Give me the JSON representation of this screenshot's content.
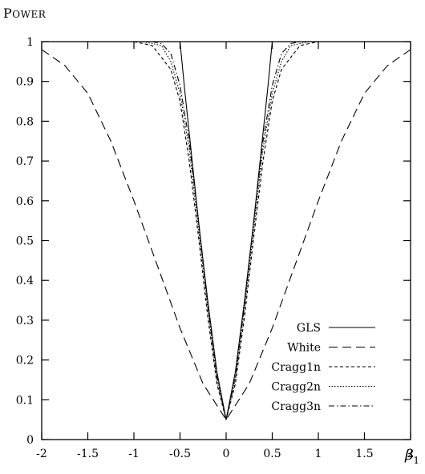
{
  "chart_data": {
    "type": "line",
    "title": "",
    "ylabel": "Power",
    "xlabel": "β",
    "xlabel_sub": "1",
    "xlim": [
      -2,
      2
    ],
    "ylim": [
      0,
      1
    ],
    "xticks": [
      "-2",
      "-1.5",
      "-1",
      "-0.5",
      "0",
      "0.5",
      "1",
      "1.5",
      "2"
    ],
    "yticks": [
      "0",
      "0.1",
      "0.2",
      "0.3",
      "0.4",
      "0.5",
      "0.6",
      "0.7",
      "0.8",
      "0.9",
      "1"
    ],
    "legend_position": "bottom-right",
    "series": [
      {
        "name": "GLS",
        "dash": "solid",
        "x": [
          -0.5,
          -0.45,
          -0.4,
          -0.3,
          -0.2,
          -0.1,
          0,
          0.1,
          0.2,
          0.3,
          0.4,
          0.45,
          0.5
        ],
        "y": [
          1.0,
          0.88,
          0.77,
          0.55,
          0.35,
          0.17,
          0.05,
          0.17,
          0.35,
          0.55,
          0.77,
          0.88,
          1.0
        ]
      },
      {
        "name": "White",
        "dash": "long-dash",
        "x": [
          -2,
          -1.75,
          -1.5,
          -1.25,
          -1,
          -0.75,
          -0.5,
          -0.25,
          0,
          0.25,
          0.5,
          0.75,
          1,
          1.25,
          1.5,
          1.75,
          2
        ],
        "y": [
          0.98,
          0.94,
          0.87,
          0.75,
          0.6,
          0.44,
          0.28,
          0.14,
          0.05,
          0.14,
          0.28,
          0.44,
          0.6,
          0.75,
          0.87,
          0.94,
          0.98
        ],
        "extends_right": true
      },
      {
        "name": "Cragg1n",
        "dash": "short-dash",
        "x": [
          -1.0,
          -0.8,
          -0.6,
          -0.5,
          -0.4,
          -0.3,
          -0.2,
          -0.1,
          0,
          0.1,
          0.2,
          0.3,
          0.4,
          0.5,
          0.6,
          0.8,
          1.0
        ],
        "y": [
          1.0,
          0.99,
          0.93,
          0.85,
          0.7,
          0.51,
          0.31,
          0.14,
          0.05,
          0.14,
          0.31,
          0.51,
          0.7,
          0.85,
          0.93,
          0.99,
          1.0
        ]
      },
      {
        "name": "Cragg2n",
        "dash": "dotted",
        "x": [
          -0.9,
          -0.7,
          -0.6,
          -0.5,
          -0.4,
          -0.3,
          -0.2,
          -0.1,
          0,
          0.1,
          0.2,
          0.3,
          0.4,
          0.5,
          0.6,
          0.7,
          0.9
        ],
        "y": [
          1.0,
          0.99,
          0.95,
          0.87,
          0.73,
          0.53,
          0.33,
          0.15,
          0.05,
          0.15,
          0.33,
          0.53,
          0.73,
          0.87,
          0.95,
          0.99,
          1.0
        ]
      },
      {
        "name": "Cragg3n",
        "dash": "dash-dot",
        "x": [
          -0.8,
          -0.7,
          -0.6,
          -0.5,
          -0.4,
          -0.3,
          -0.2,
          -0.1,
          0,
          0.1,
          0.2,
          0.3,
          0.4,
          0.5,
          0.6,
          0.7,
          0.8
        ],
        "y": [
          1.0,
          0.995,
          0.97,
          0.89,
          0.75,
          0.55,
          0.34,
          0.16,
          0.05,
          0.16,
          0.34,
          0.55,
          0.75,
          0.89,
          0.97,
          0.995,
          1.0
        ]
      }
    ]
  }
}
